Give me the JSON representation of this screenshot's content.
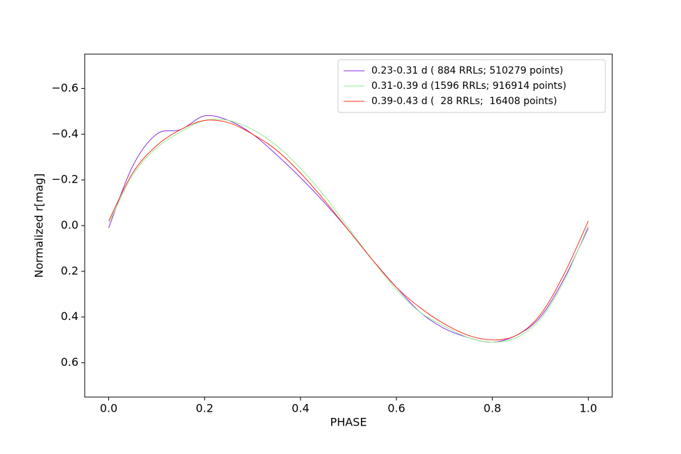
{
  "chart_data": {
    "type": "line",
    "xlabel": "PHASE",
    "ylabel": "Normalized r[mag]",
    "x": [
      0,
      0.05,
      0.1,
      0.15,
      0.2,
      0.25,
      0.3,
      0.35,
      0.4,
      0.45,
      0.5,
      0.55,
      0.6,
      0.65,
      0.7,
      0.75,
      0.8,
      0.85,
      0.9,
      0.95,
      1.0
    ],
    "series": [
      {
        "name": "0.23-0.31 d ( 884 RRLs; 510279 points)",
        "color": "#8a2be2",
        "values": [
          0.01,
          -0.26,
          -0.4,
          -0.42,
          -0.48,
          -0.46,
          -0.4,
          -0.31,
          -0.21,
          -0.1,
          0.02,
          0.15,
          0.27,
          0.38,
          0.45,
          0.49,
          0.51,
          0.48,
          0.4,
          0.23,
          0.01
        ]
      },
      {
        "name": "0.31-0.39 d (1596 RRLs; 916914 points)",
        "color": "#90ee90",
        "values": [
          -0.01,
          -0.22,
          -0.34,
          -0.41,
          -0.46,
          -0.46,
          -0.42,
          -0.35,
          -0.25,
          -0.13,
          0.01,
          0.15,
          0.28,
          0.38,
          0.44,
          0.49,
          0.51,
          0.49,
          0.41,
          0.24,
          0.0
        ]
      },
      {
        "name": "0.39-0.43 d (  28 RRLs;  16408 points)",
        "color": "#ff2a1a",
        "values": [
          -0.02,
          -0.23,
          -0.35,
          -0.42,
          -0.46,
          -0.45,
          -0.4,
          -0.33,
          -0.23,
          -0.11,
          0.02,
          0.15,
          0.27,
          0.36,
          0.43,
          0.48,
          0.5,
          0.48,
          0.39,
          0.21,
          -0.02
        ]
      }
    ],
    "xlim": [
      -0.05,
      1.05
    ],
    "xticks": [
      {
        "value": 0,
        "label": "0.0"
      },
      0.2,
      0.4,
      0.6,
      0.8,
      {
        "value": 1,
        "label": "1.0"
      }
    ],
    "ylim": [
      -0.75,
      0.75
    ],
    "y_inverted": true,
    "yticks": [
      {
        "value": -0.6,
        "label": "−0.6"
      },
      {
        "value": -0.4,
        "label": "−0.4"
      },
      {
        "value": -0.2,
        "label": "−0.2"
      },
      {
        "value": 0,
        "label": "0.0"
      },
      0.2,
      0.4,
      0.6
    ],
    "legend": "upper right"
  }
}
